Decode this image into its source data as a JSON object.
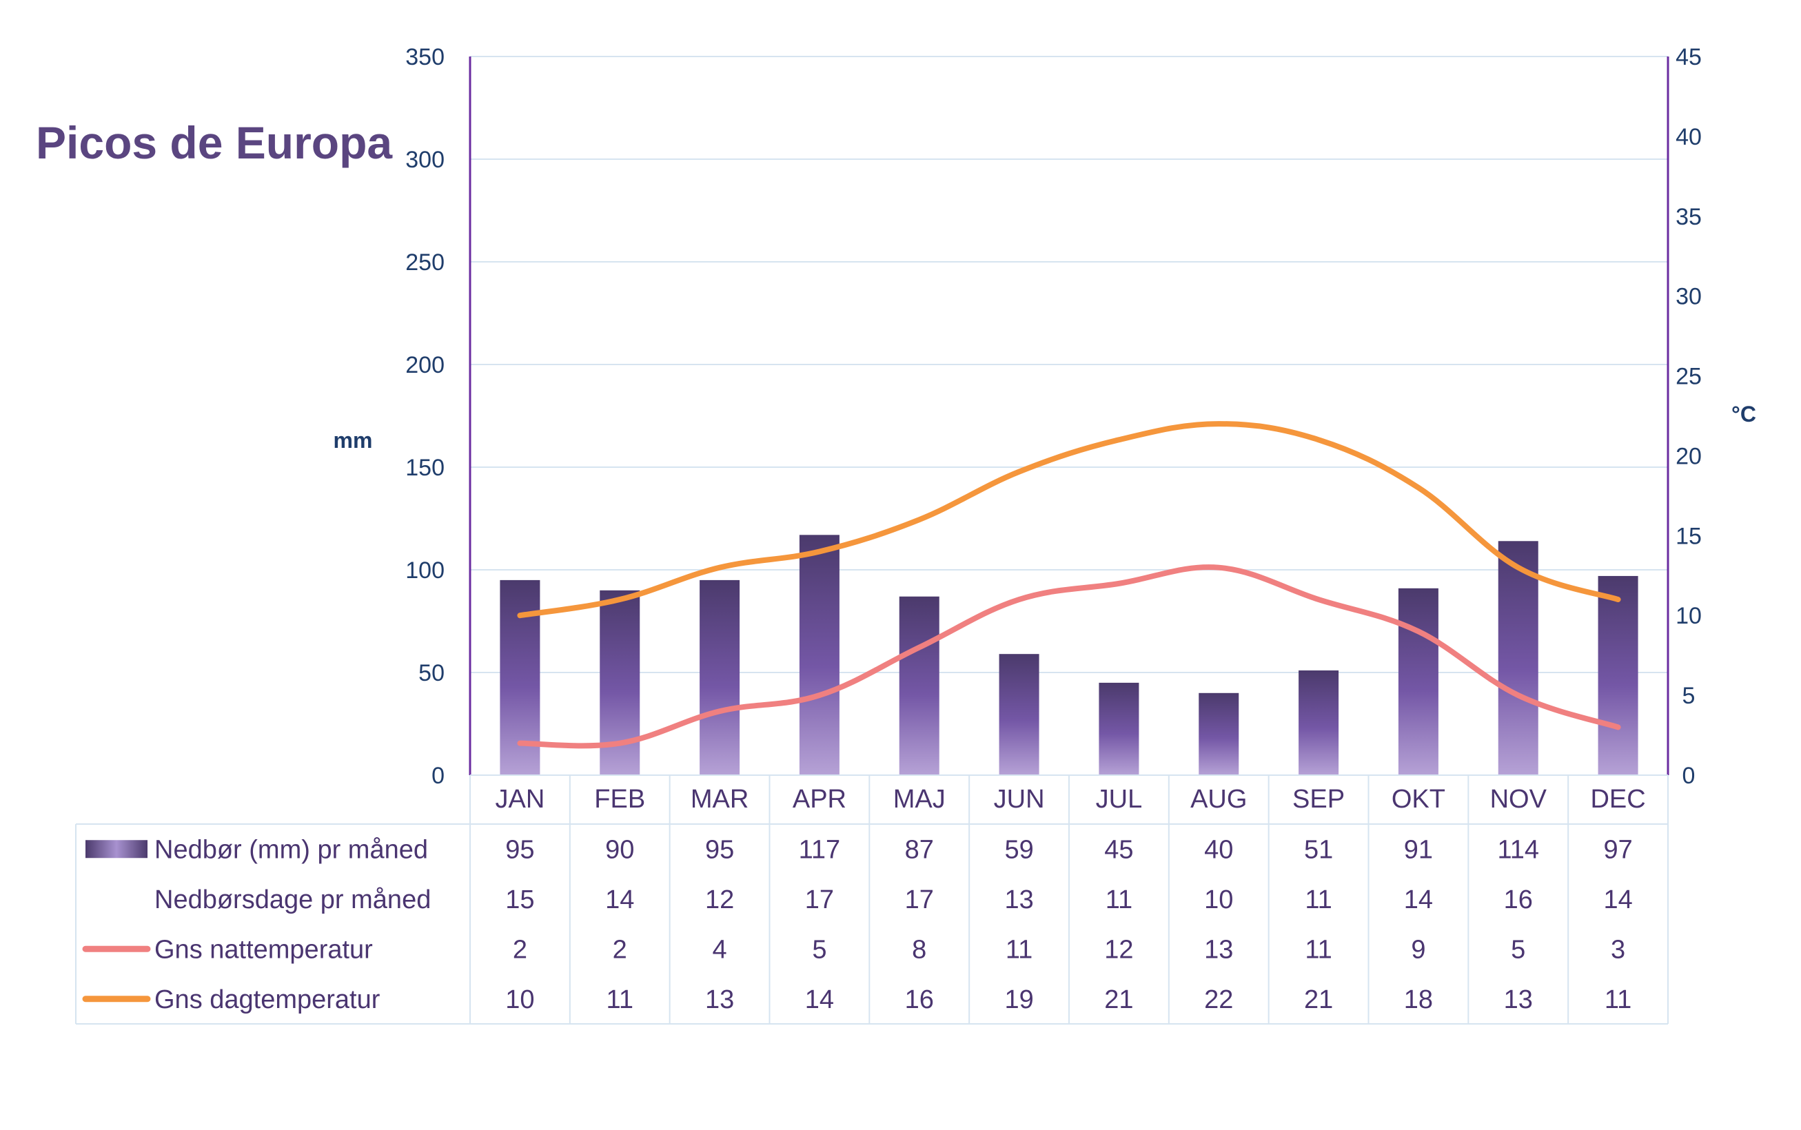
{
  "chart_data": {
    "type": "bar",
    "title": "Picos de Europa",
    "categories": [
      "JAN",
      "FEB",
      "MAR",
      "APR",
      "MAJ",
      "JUN",
      "JUL",
      "AUG",
      "SEP",
      "OKT",
      "NOV",
      "DEC"
    ],
    "left_axis": {
      "label": "mm",
      "ylim": [
        0,
        350
      ],
      "ticks": [
        0,
        50,
        100,
        150,
        200,
        250,
        300,
        350
      ]
    },
    "right_axis": {
      "label": "°C",
      "ylim": [
        0,
        45
      ],
      "ticks": [
        0,
        5,
        10,
        15,
        20,
        25,
        30,
        35,
        40,
        45
      ]
    },
    "grid": true,
    "legend": "table-below",
    "series": [
      {
        "name": "Nedbør (mm) pr måned",
        "type": "bar",
        "axis": "left",
        "values": [
          95,
          90,
          95,
          117,
          87,
          59,
          45,
          40,
          51,
          91,
          114,
          97
        ],
        "color": "#5b4680"
      },
      {
        "name": "Nedbørsdage pr måned",
        "type": "table-only",
        "values": [
          15,
          14,
          12,
          17,
          17,
          13,
          11,
          10,
          11,
          14,
          16,
          14
        ]
      },
      {
        "name": "Gns nattemperatur",
        "type": "line",
        "axis": "right",
        "values": [
          2,
          2,
          4,
          5,
          8,
          11,
          12,
          13,
          11,
          9,
          5,
          3
        ],
        "color": "#f08080"
      },
      {
        "name": "Gns dagtemperatur",
        "type": "line",
        "axis": "right",
        "values": [
          10,
          11,
          13,
          14,
          16,
          19,
          21,
          22,
          21,
          18,
          13,
          11
        ],
        "color": "#f5963c"
      }
    ]
  },
  "colors": {
    "title": "#5a4580",
    "axis_text": "#1f3d6b",
    "axis_line": "#6a2ca0",
    "grid": "#d6e4f0",
    "table_text": "#4a3570",
    "table_border": "#d6e4f0"
  }
}
